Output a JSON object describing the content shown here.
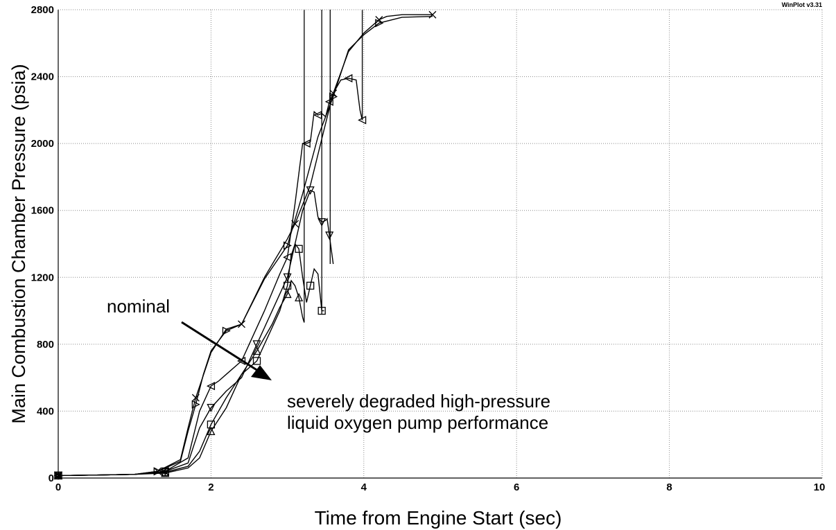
{
  "chart_data": {
    "type": "line",
    "title": "",
    "xlabel": "Time from Engine Start (sec)",
    "ylabel": "Main Combustion Chamber Pressure (psia)",
    "xlim": [
      0,
      10
    ],
    "ylim": [
      0,
      2800
    ],
    "x_ticks": [
      "0",
      "2",
      "4",
      "6",
      "8",
      "10"
    ],
    "y_ticks": [
      "0",
      "400",
      "800",
      "1200",
      "1600",
      "2000",
      "2400",
      "2800"
    ],
    "grid": true,
    "watermark": "WinPlot v3.31",
    "annotations": {
      "nominal": "nominal",
      "degraded_line1": "severely degraded high-pressure",
      "degraded_line2": "liquid oxygen pump performance"
    },
    "series": [
      {
        "marker": "x",
        "x": [
          0,
          0.5,
          1.0,
          1.3,
          1.6,
          1.7,
          1.8,
          2.0,
          2.2,
          2.4,
          2.7,
          3.0,
          3.1,
          3.3,
          3.5,
          3.6,
          3.8,
          4.0,
          4.2,
          4.3,
          4.5,
          4.9
        ],
        "y": [
          15,
          18,
          22,
          40,
          110,
          300,
          480,
          750,
          890,
          920,
          1200,
          1430,
          1520,
          1750,
          2120,
          2300,
          2550,
          2660,
          2740,
          2760,
          2770,
          2770
        ]
      },
      {
        "marker": "triangle-right",
        "x": [
          0,
          0.5,
          1.0,
          1.3,
          1.6,
          1.7,
          1.8,
          1.9,
          2.0,
          2.2,
          2.4,
          2.7,
          3.0,
          3.2,
          3.4,
          3.6,
          3.8,
          4.0,
          4.2,
          4.5,
          4.9
        ],
        "y": [
          15,
          18,
          22,
          40,
          100,
          280,
          440,
          620,
          760,
          880,
          920,
          1190,
          1390,
          1700,
          2040,
          2280,
          2560,
          2650,
          2720,
          2755,
          2760
        ]
      },
      {
        "marker": "triangle-left",
        "x": [
          0,
          0.5,
          1.0,
          1.4,
          1.7,
          1.85,
          2.0,
          2.1,
          2.2,
          2.4,
          2.7,
          2.9,
          3.0,
          3.1,
          3.2,
          3.25,
          3.3,
          3.35,
          3.4,
          3.45,
          3.5,
          3.55,
          3.6,
          3.7,
          3.8,
          3.9,
          3.95,
          3.98
        ],
        "y": [
          15,
          18,
          22,
          40,
          120,
          400,
          550,
          580,
          620,
          700,
          1000,
          1220,
          1320,
          1640,
          2000,
          2000,
          2010,
          2190,
          2170,
          2180,
          2160,
          2250,
          2300,
          2380,
          2390,
          2380,
          2200,
          2140
        ]
      },
      {
        "marker": "triangle-down",
        "x": [
          0,
          0.5,
          1.0,
          1.4,
          1.7,
          1.85,
          2.0,
          2.2,
          2.4,
          2.6,
          2.8,
          2.9,
          3.0,
          3.1,
          3.2,
          3.3,
          3.35,
          3.4,
          3.45,
          3.5,
          3.52,
          3.55,
          3.6
        ],
        "y": [
          15,
          18,
          22,
          40,
          90,
          300,
          420,
          520,
          600,
          800,
          1000,
          1100,
          1200,
          1400,
          1600,
          1720,
          1710,
          1560,
          1530,
          1540,
          1550,
          1450,
          1280
        ]
      },
      {
        "marker": "square",
        "x": [
          0,
          0.5,
          1.0,
          1.4,
          1.7,
          1.85,
          2.0,
          2.2,
          2.4,
          2.6,
          2.8,
          2.9,
          3.0,
          3.05,
          3.1,
          3.15,
          3.2,
          3.25,
          3.3,
          3.35,
          3.4,
          3.45,
          3.48
        ],
        "y": [
          15,
          18,
          22,
          35,
          70,
          160,
          320,
          480,
          620,
          700,
          900,
          1000,
          1150,
          1330,
          1400,
          1370,
          1200,
          1050,
          1150,
          1250,
          1220,
          1000,
          1000
        ]
      },
      {
        "marker": "triangle-up",
        "x": [
          0,
          0.5,
          1.0,
          1.4,
          1.7,
          1.85,
          2.0,
          2.2,
          2.4,
          2.6,
          2.8,
          2.9,
          3.0,
          3.05,
          3.1,
          3.15,
          3.2,
          3.22
        ],
        "y": [
          15,
          18,
          22,
          30,
          60,
          120,
          280,
          420,
          620,
          760,
          920,
          1020,
          1100,
          1180,
          1150,
          1080,
          960,
          930
        ]
      }
    ]
  }
}
